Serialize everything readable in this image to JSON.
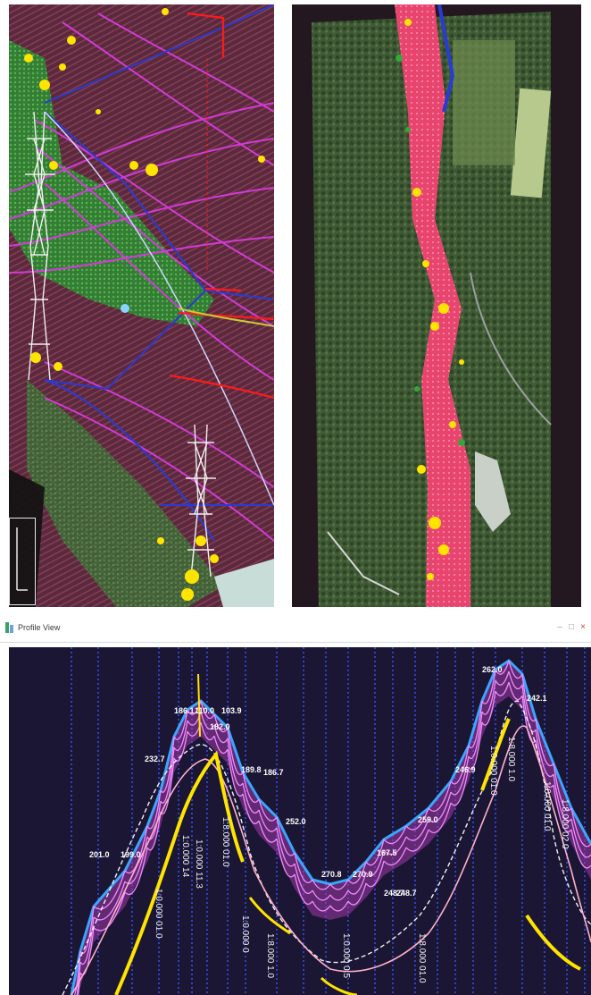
{
  "colors": {
    "point_cloud_bg": "#5a2a3c",
    "ground_points": "#8a3e5a",
    "vegetation": "#33a83a",
    "alert_points": "#ffe400",
    "conductor_magenta": "#d23ad8",
    "conductor_blue": "#2a3ad6",
    "tower": "#f0f0f0",
    "danger_red": "#ff1a1a",
    "corridor_pink": "#e8456e",
    "profile_bg": "#1a1634",
    "span_divider": "#3a56ff"
  },
  "profile_view": {
    "title": "Profile View",
    "app_icon": "profile-view-app-icon",
    "window_buttons": [
      "minimize-icon",
      "maximize-icon",
      "close-icon"
    ],
    "tower_labels": [
      "201.0",
      "199.0",
      "232.7",
      "186.1",
      "110.0",
      "103.9",
      "182.0",
      "189.8",
      "186.7",
      "252.0",
      "270.8",
      "270.9",
      "167.5",
      "248.7",
      "248.7",
      "259.0",
      "246.9",
      "262.0",
      "242.1"
    ],
    "vertical_labels": [
      "1:0.000 01.0",
      "1:0.000 14",
      "1:0.000 11.3",
      "1:8.000 01.0",
      "1:0.000 0",
      "1:8.000 1.0",
      "1:0.000 0.5",
      "1:8.000 01.0",
      "1:0.000 01.0",
      "1:8.000 1.0",
      "1:0.000 01.0",
      "1:8.000 02.0"
    ]
  }
}
